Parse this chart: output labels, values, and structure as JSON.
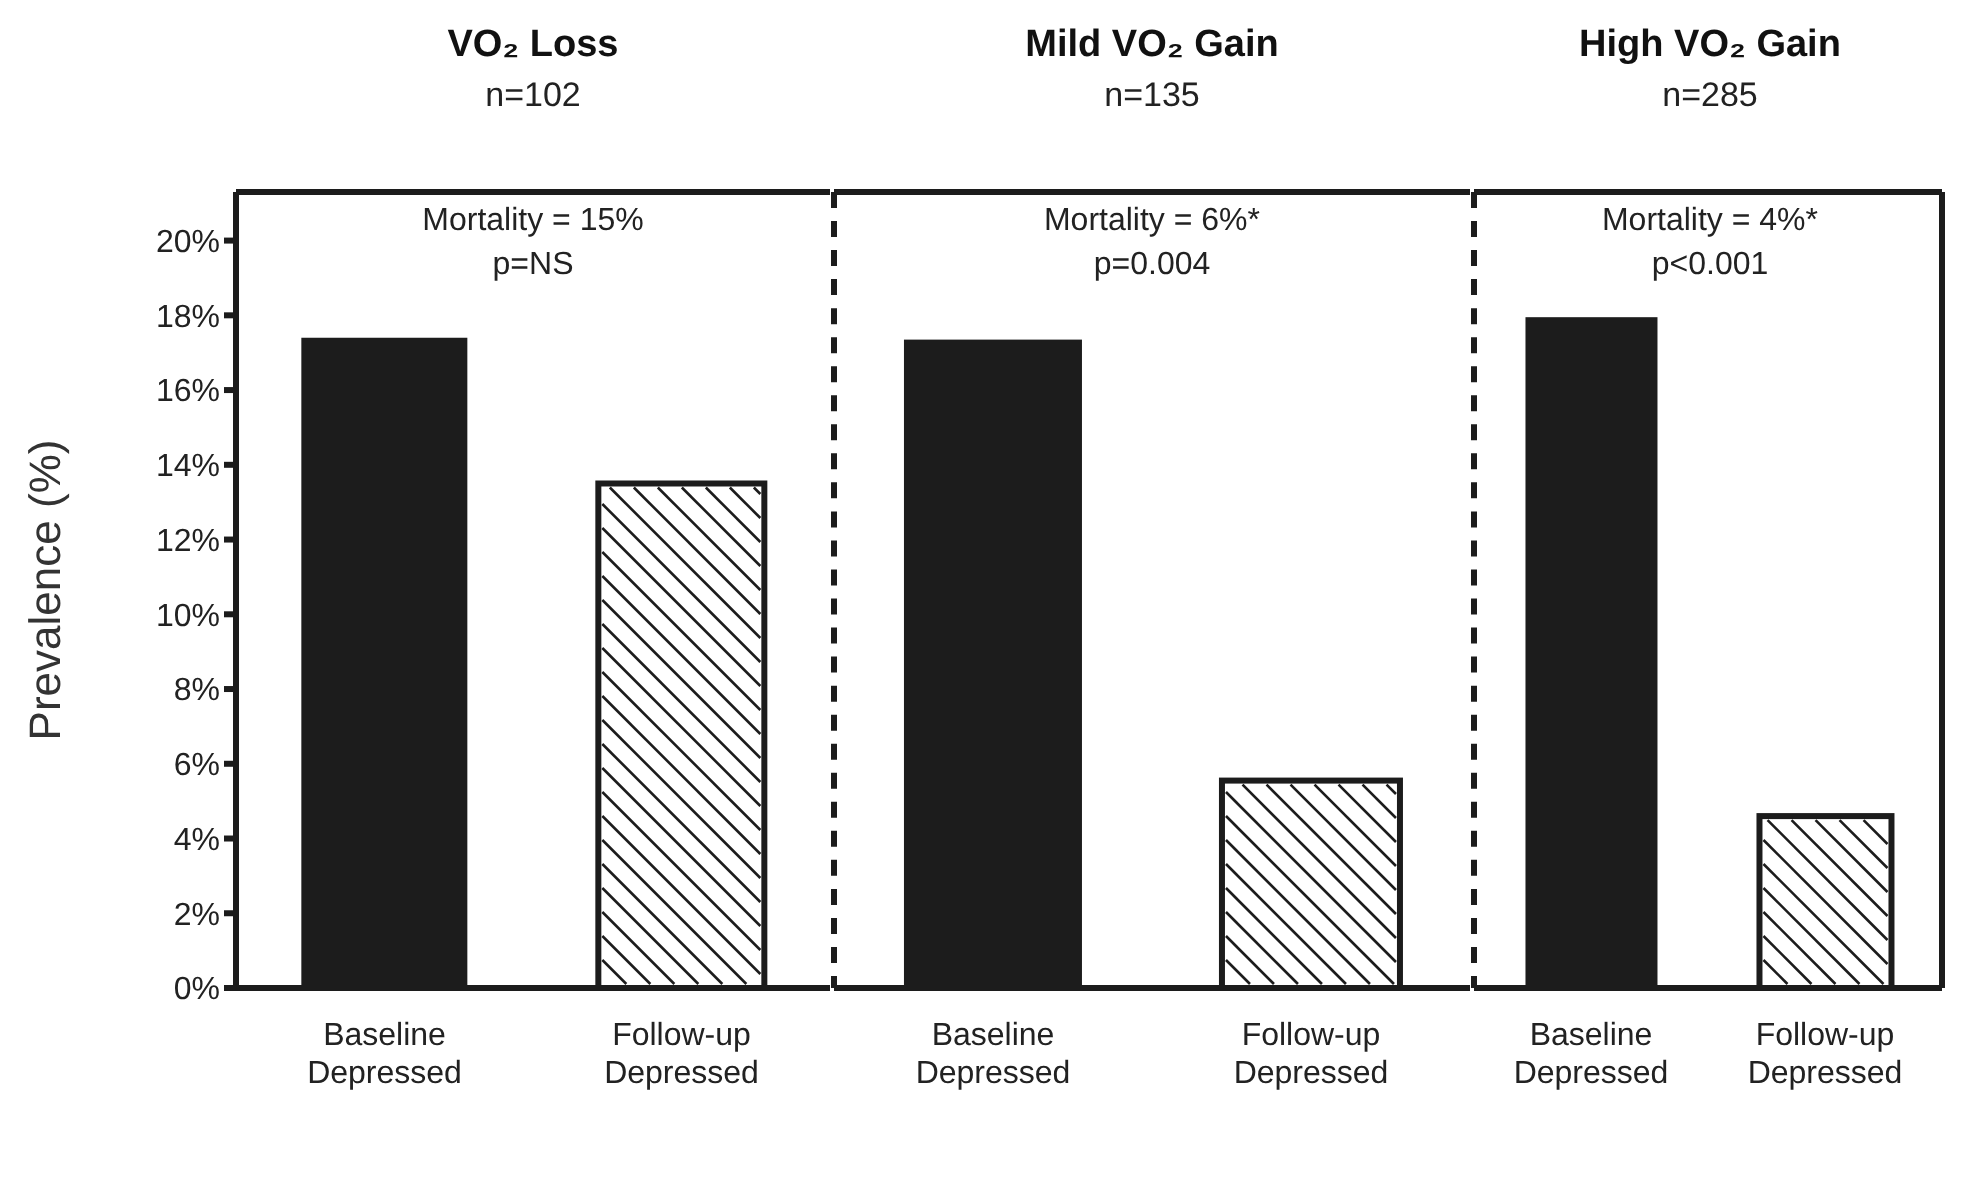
{
  "chart_data": [
    {
      "type": "bar",
      "title": "VO₂ Loss",
      "subtitle": "n=102",
      "ylabel": "Prevalence (%)",
      "categories": [
        "Baseline Depressed",
        "Follow-up Depressed"
      ],
      "values": [
        17.4,
        13.5
      ],
      "colors": [
        "#1c1c1c",
        "#ffffff"
      ],
      "ylim": [
        0,
        21.3
      ],
      "yticks": [
        {
          "value": 0,
          "label": "0%"
        },
        {
          "value": 2,
          "label": "2%"
        },
        {
          "value": 4,
          "label": "4%"
        },
        {
          "value": 6,
          "label": "6%"
        },
        {
          "value": 8,
          "label": "8%"
        },
        {
          "value": 10,
          "label": "10%"
        },
        {
          "value": 12,
          "label": "12%"
        },
        {
          "value": 14,
          "label": "14%"
        },
        {
          "value": 16,
          "label": "16%"
        },
        {
          "value": 18,
          "label": "18%"
        },
        {
          "value": 20,
          "label": "20%"
        }
      ],
      "annotations": [
        "Mortality = 15%",
        "p=NS"
      ],
      "grid": false,
      "legend": false
    },
    {
      "type": "bar",
      "title": "Mild VO₂ Gain",
      "subtitle": "n=135",
      "categories": [
        "Baseline Depressed",
        "Follow-up Depressed"
      ],
      "values": [
        17.35,
        5.55
      ],
      "colors": [
        "#1c1c1c",
        "#ffffff"
      ],
      "ylim": [
        0,
        21.3
      ],
      "tick_labels": "x",
      "annotations": [
        "Mortality = 6%*",
        "p=0.004"
      ],
      "grid": false,
      "legend": false
    },
    {
      "type": "bar",
      "title": "High VO₂ Gain",
      "subtitle": "n=285",
      "categories": [
        "Baseline Depressed",
        "Follow-up Depressed"
      ],
      "values": [
        17.95,
        4.6
      ],
      "colors": [
        "#1c1c1c",
        "#ffffff"
      ],
      "ylim": [
        0,
        21.3
      ],
      "tick_labels": "x",
      "annotations": [
        "Mortality = 4%*",
        "p<0.001"
      ],
      "grid": false,
      "legend": false
    }
  ]
}
